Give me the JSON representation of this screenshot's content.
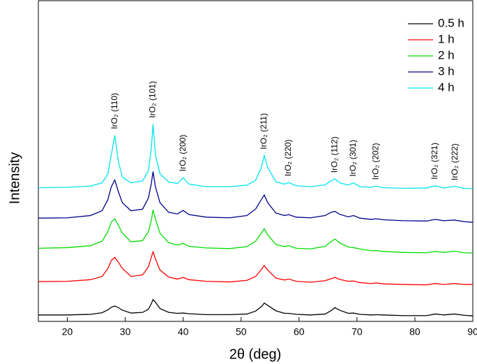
{
  "chart_data": {
    "type": "line",
    "xlabel": "2θ (deg)",
    "ylabel": "Intensity",
    "xlim": [
      15,
      90
    ],
    "xticks": [
      20,
      30,
      40,
      50,
      60,
      70,
      80,
      90
    ],
    "ylim": [
      0,
      100
    ],
    "legend": "upper right",
    "x": [
      15,
      20,
      24,
      26,
      27,
      27.6,
      28.2,
      28.8,
      29.5,
      31,
      33,
      34,
      34.5,
      34.8,
      35.2,
      36,
      37.5,
      39,
      40,
      41,
      44,
      48,
      51,
      52.5,
      53.5,
      54,
      54.6,
      56,
      57.5,
      58.2,
      59.5,
      62,
      64.5,
      65.5,
      66.2,
      67,
      68.5,
      69.4,
      70.5,
      72.5,
      73.3,
      74.5,
      78,
      82,
      83.5,
      85,
      86.8,
      88.5,
      90
    ],
    "series": [
      {
        "name": "0.5 h",
        "color": "#000000",
        "values": [
          2,
          2,
          2.2,
          2.7,
          3.6,
          4.4,
          4.8,
          4.3,
          3.5,
          2.6,
          2.8,
          3.8,
          5.5,
          6.8,
          6,
          4,
          2.8,
          2.5,
          2.6,
          2.4,
          2.1,
          2.1,
          2.3,
          3.2,
          4.6,
          5.7,
          5,
          3.3,
          2.5,
          2.5,
          2.2,
          2,
          2.3,
          3.3,
          4.3,
          3.5,
          2.5,
          2.6,
          2.2,
          2,
          2.1,
          2,
          1.8,
          1.8,
          2.3,
          2,
          2.3,
          1.9,
          1.7
        ]
      },
      {
        "name": "1 h",
        "color": "#ff0000",
        "values": [
          12.4,
          12.5,
          13,
          14,
          16.5,
          19,
          20,
          18.5,
          16.5,
          14,
          14.5,
          17,
          20,
          21.7,
          19.5,
          16,
          13.8,
          13.2,
          13.7,
          13,
          12.5,
          12.3,
          12.8,
          14,
          16.2,
          17.4,
          16,
          13.5,
          12.9,
          13.2,
          12.5,
          12.2,
          12.7,
          13.3,
          13.7,
          13.1,
          12.5,
          12.6,
          12.1,
          11.8,
          12,
          11.7,
          11.5,
          11.4,
          11.8,
          11.5,
          11.8,
          11.5,
          11.5
        ]
      },
      {
        "name": "2 h",
        "color": "#00dd00",
        "values": [
          22.8,
          23,
          23.6,
          25,
          28,
          31,
          32,
          30,
          27.5,
          24.8,
          25.2,
          28,
          31.5,
          34.8,
          32,
          27.5,
          24.5,
          23.8,
          24.3,
          23.4,
          22.9,
          22.7,
          23.3,
          25,
          27.5,
          28.9,
          27,
          24,
          23.3,
          23.6,
          22.8,
          22.6,
          23.4,
          24.8,
          25.7,
          24.5,
          23.2,
          23,
          22.6,
          22,
          22.1,
          21.8,
          21.5,
          21.4,
          21.8,
          21.5,
          21.9,
          21.4,
          21.3
        ]
      },
      {
        "name": "3 h",
        "color": "#00008b",
        "values": [
          32.2,
          32.3,
          33,
          34.5,
          38,
          42,
          44.1,
          40.5,
          37,
          34.5,
          35,
          38.5,
          43,
          46.7,
          42,
          37,
          34,
          33.5,
          34.6,
          33.3,
          32.5,
          32.3,
          33,
          35,
          38,
          39.4,
          37,
          33.8,
          33,
          33.3,
          32.5,
          32.3,
          33,
          34,
          34.3,
          33.4,
          32.6,
          33,
          32.2,
          31.8,
          32,
          31.7,
          31.4,
          31.3,
          31.8,
          31.4,
          31.6,
          31.1,
          30.9
        ]
      },
      {
        "name": "4 h",
        "color": "#00e5ee",
        "values": [
          41.7,
          41.8,
          42.2,
          43.2,
          46,
          52,
          58,
          50,
          45,
          43.2,
          43.8,
          47,
          54,
          61.5,
          52,
          46,
          43.5,
          43,
          44.8,
          42.8,
          42,
          42,
          42.5,
          44,
          48,
          51.7,
          48,
          43.5,
          42.8,
          43.3,
          42.3,
          42,
          42.6,
          43.8,
          44.4,
          43.2,
          42.5,
          43.2,
          42,
          41.8,
          42.2,
          41.7,
          41.5,
          41.6,
          42.3,
          41.6,
          42.1,
          41.5,
          41.4
        ]
      }
    ],
    "annotations": [
      {
        "text": "IrO₂ (110)",
        "x": 28.2
      },
      {
        "text": "IrO₂ (101)",
        "x": 34.8
      },
      {
        "text": "IrO₂ (200)",
        "x": 40
      },
      {
        "text": "IrO₂ (211)",
        "x": 54
      },
      {
        "text": "IrO₂ (220)",
        "x": 58.2
      },
      {
        "text": "IrO₂ (112)",
        "x": 66.2
      },
      {
        "text": "IrO₂ (301)",
        "x": 69.4
      },
      {
        "text": "IrO₂ (202)",
        "x": 73.3
      },
      {
        "text": "IrO₂ (321)",
        "x": 83.5
      },
      {
        "text": "IrO₂ (222)",
        "x": 87
      }
    ]
  }
}
